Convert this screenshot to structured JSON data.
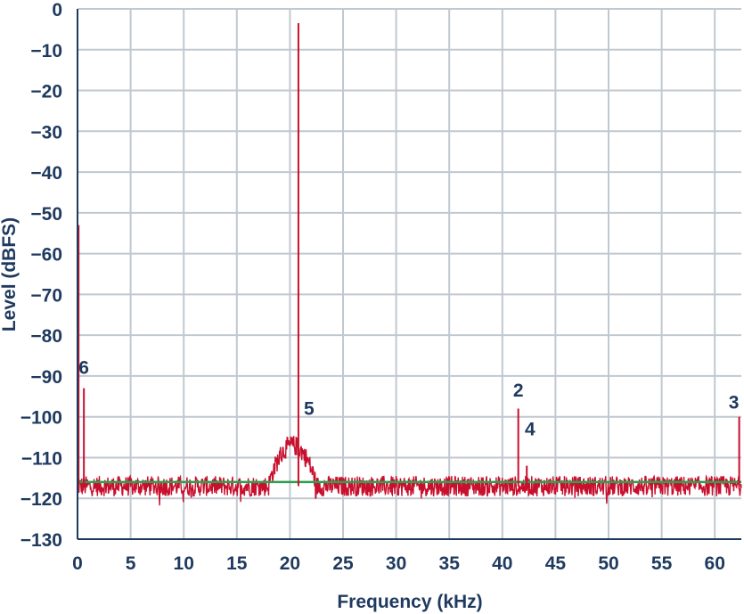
{
  "chart_data": {
    "type": "line",
    "title": "",
    "xlabel": "Frequency (kHz)",
    "ylabel": "Level (dBFS)",
    "xlim": [
      0,
      62.5
    ],
    "ylim": [
      -130,
      0
    ],
    "x_ticks": [
      0,
      5,
      10,
      15,
      20,
      25,
      30,
      35,
      40,
      45,
      50,
      55,
      60
    ],
    "y_ticks": [
      0,
      -10,
      -20,
      -30,
      -40,
      -50,
      -60,
      -70,
      -80,
      -90,
      -100,
      -110,
      -120,
      -130
    ],
    "x_tick_labels": [
      "0",
      "5",
      "10",
      "15",
      "20",
      "25",
      "30",
      "35",
      "40",
      "45",
      "50",
      "55",
      "60"
    ],
    "y_tick_labels": [
      "0",
      "−10",
      "−20",
      "−30",
      "−40",
      "−50",
      "−60",
      "−70",
      "−80",
      "−90",
      "−100",
      "−110",
      "−120",
      "−130"
    ],
    "grid": true,
    "colors": {
      "spectrum": "#c8102e",
      "noise_floor": "#2e9e4f",
      "grid": "#c0c8d0",
      "axis": "#1f3a5f"
    },
    "noise_floor_level": -116,
    "spectrum_baseline": -117,
    "noise_hump": {
      "x_start": 18,
      "x_end": 22.5,
      "peak_level": -107
    },
    "peaks": [
      {
        "x": 0.1,
        "y": -53
      },
      {
        "x": 0.6,
        "y": -93
      },
      {
        "x": 20.8,
        "y": -3.5
      },
      {
        "x": 41.5,
        "y": -98
      },
      {
        "x": 42.3,
        "y": -112
      },
      {
        "x": 62.3,
        "y": -100
      }
    ],
    "annotations": [
      {
        "text": "6",
        "x": 0.6,
        "y": -89.5
      },
      {
        "text": "5",
        "x": 21.8,
        "y": -99.5
      },
      {
        "text": "2",
        "x": 41.5,
        "y": -95
      },
      {
        "text": "4",
        "x": 42.6,
        "y": -104.5
      },
      {
        "text": "3",
        "x": 61.8,
        "y": -98
      }
    ]
  }
}
